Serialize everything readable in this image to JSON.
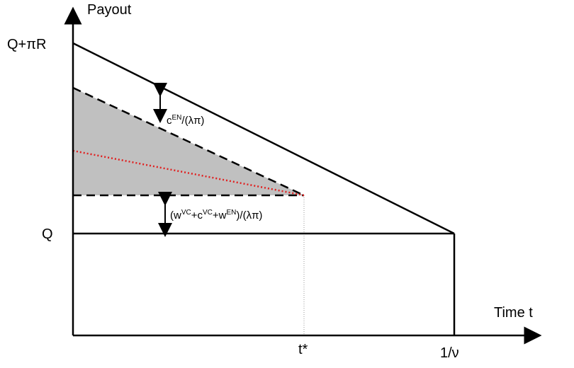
{
  "axes": {
    "y_label": "Payout",
    "x_label": "Time t"
  },
  "y_ticks": {
    "top": "Q+πR",
    "bottom": "Q"
  },
  "x_ticks": {
    "t_star": "t*",
    "end": "1/ν"
  },
  "annotations": {
    "upper_gap": {
      "base": "c",
      "sup": "EN",
      "tail": "/(λπ)"
    },
    "lower_gap": [
      {
        "base": "(w",
        "sup": "VC"
      },
      {
        "base": "+c",
        "sup": "VC"
      },
      {
        "base": "+w",
        "sup": "EN"
      },
      {
        "base": ")/(λπ)",
        "sup": ""
      }
    ]
  },
  "colors": {
    "line": "#000000",
    "shade": "#c0c0c0",
    "dotted_red": "#e02020",
    "guide": "#999999"
  }
}
